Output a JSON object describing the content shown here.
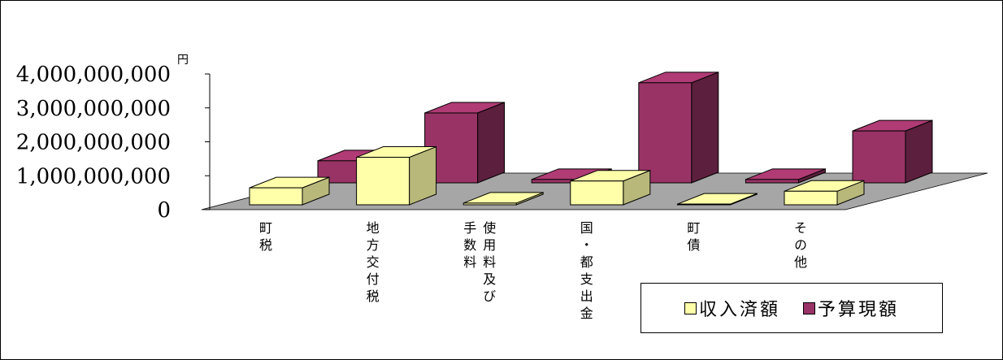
{
  "chart_data": {
    "type": "bar3d",
    "unit": "円",
    "categories": [
      "町税",
      "地方交付税",
      "使用料及び手数料",
      "国・都支出金",
      "町債",
      "その他"
    ],
    "series": [
      {
        "name": "収入済額",
        "color": "#ffffaa",
        "values": [
          500000000,
          1400000000,
          50000000,
          700000000,
          20000000,
          400000000
        ]
      },
      {
        "name": "予算現額",
        "color": "#993366",
        "values": [
          650000000,
          2060000000,
          100000000,
          2950000000,
          100000000,
          1530000000
        ]
      }
    ],
    "ylim": [
      0,
      4000000000
    ],
    "yticks": [
      {
        "value": 0,
        "label": "0"
      },
      {
        "value": 1000000000,
        "label": "1,000,000,000"
      },
      {
        "value": 2000000000,
        "label": "2,000,000,000"
      },
      {
        "value": 3000000000,
        "label": "3,000,000,000"
      },
      {
        "value": 4000000000,
        "label": "4,000,000,000"
      }
    ],
    "legend": "bottom-right"
  }
}
